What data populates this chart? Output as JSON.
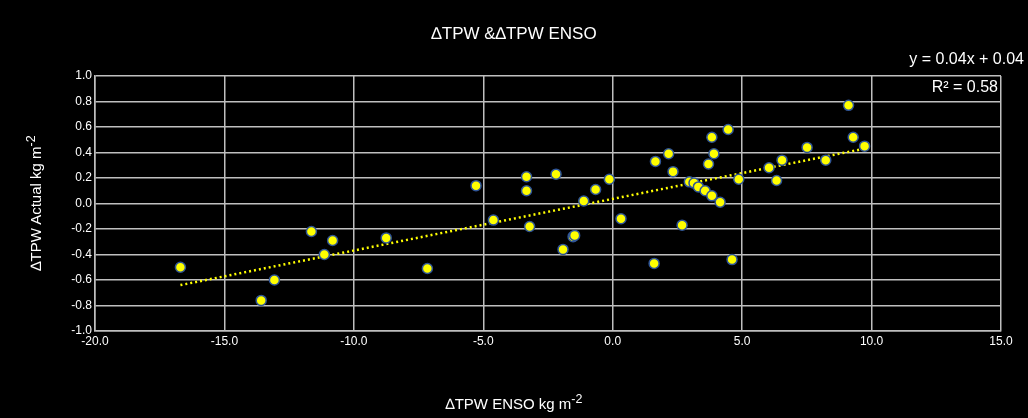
{
  "chart_data": {
    "type": "scatter",
    "title": "∆TPW &∆TPW ENSO",
    "xlabel": "∆TPW ENSO kg m$^{-2}$",
    "ylabel": "∆TPW  Actual kg m$^{-2}$",
    "annotations": [
      "y = 0.04x + 0.04",
      "R² = 0.58"
    ],
    "xlim": [
      -20,
      15
    ],
    "xticks": [
      {
        "value": -20,
        "label": "-20.0"
      },
      {
        "value": -15,
        "label": "-15.0"
      },
      {
        "value": -10,
        "label": "-10.0"
      },
      {
        "value": -5,
        "label": "-5.0"
      },
      {
        "value": 0,
        "label": "0.0"
      },
      {
        "value": 5,
        "label": "5.0"
      },
      {
        "value": 10,
        "label": "10.0"
      },
      {
        "value": 15,
        "label": "15.0"
      }
    ],
    "ylim": [
      -1,
      1
    ],
    "yticks": [
      {
        "value": -1,
        "label": "-1.0"
      },
      -0.8,
      -0.6,
      -0.4,
      -0.2,
      {
        "value": 0,
        "label": "0.0"
      },
      0.2,
      0.4,
      0.6,
      0.8,
      {
        "value": 1,
        "label": "1.0"
      }
    ],
    "grid": true,
    "legend": false,
    "marker": "circle",
    "series": [
      {
        "type": "scatter",
        "color": "#ffff00",
        "x": [
          -16.7,
          -13.58,
          -13.07,
          -11.64,
          -11.14,
          -10.82,
          -8.75,
          -7.16,
          -5.28,
          -4.61,
          -3.33,
          -3.33,
          -3.21,
          -2.19,
          -1.92,
          -1.53,
          -1.47,
          -1.12,
          -0.66,
          -0.13,
          0.32,
          1.6,
          1.65,
          2.16,
          2.33,
          2.68,
          2.96,
          3.14,
          3.31,
          3.57,
          3.7,
          3.83,
          3.91,
          3.83,
          4.15,
          4.46,
          4.61,
          4.87,
          6.04,
          6.33,
          6.54,
          7.51,
          8.23,
          9.11,
          9.29,
          9.73
        ],
        "values": [
          -0.5,
          -0.76,
          -0.6,
          -0.22,
          -0.4,
          -0.29,
          -0.27,
          -0.51,
          0.14,
          -0.13,
          0.21,
          0.1,
          -0.18,
          0.23,
          -0.36,
          -0.26,
          -0.25,
          0.02,
          0.11,
          0.19,
          -0.12,
          -0.47,
          0.33,
          0.39,
          0.25,
          -0.17,
          0.17,
          0.16,
          0.13,
          0.1,
          0.31,
          0.52,
          0.39,
          0.06,
          0.01,
          0.58,
          -0.44,
          0.19,
          0.28,
          0.18,
          0.34,
          0.44,
          0.34,
          0.77,
          0.52,
          0.45
        ]
      },
      {
        "type": "line",
        "color": "#ffff00",
        "line_style": "dotted",
        "marker": "none",
        "x": [
          -16.7,
          9.73
        ],
        "values": [
          -0.64,
          0.43
        ]
      }
    ]
  }
}
